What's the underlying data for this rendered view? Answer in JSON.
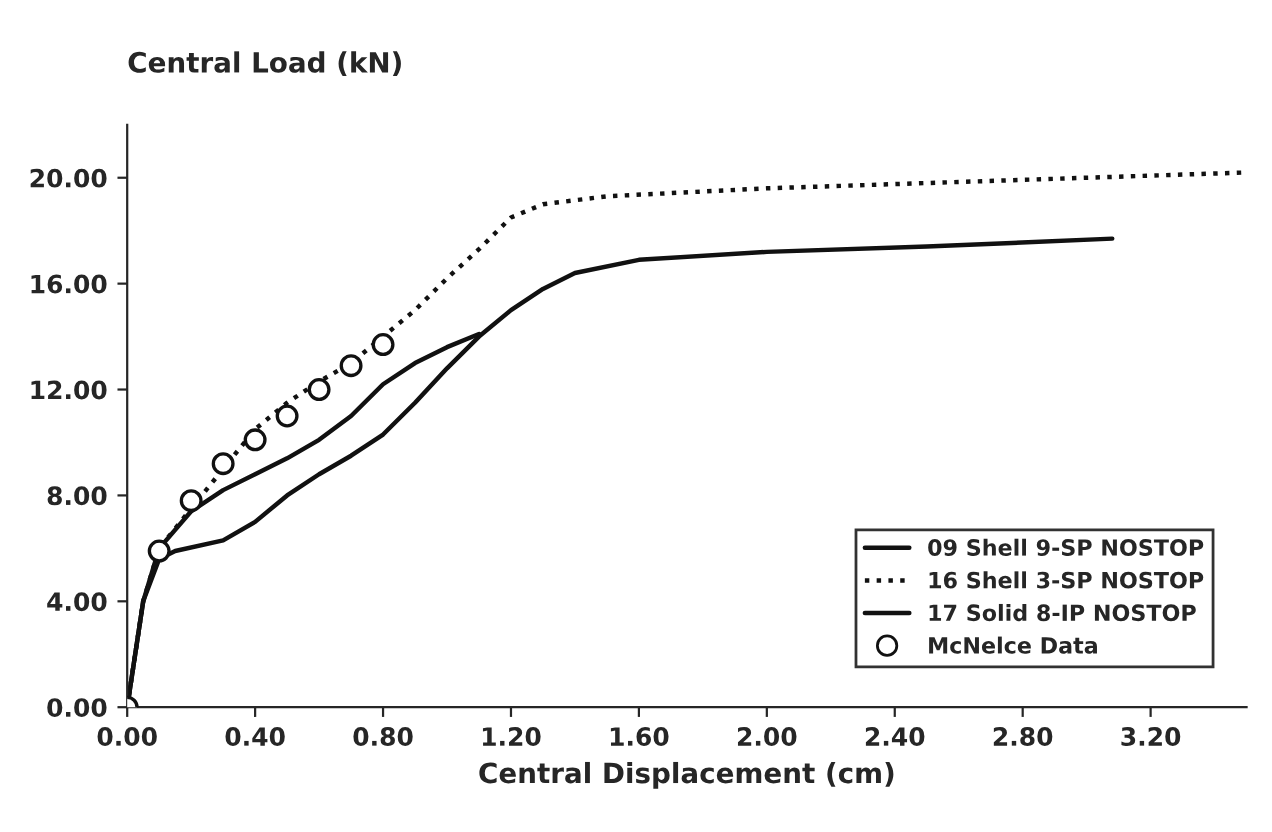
{
  "chart_data": {
    "type": "line",
    "xlabel": "Central Displacement (cm)",
    "ylabel": "Central Load (kN)",
    "xlim": [
      0,
      3.5
    ],
    "ylim": [
      0,
      22
    ],
    "xticks": [
      {
        "value": 0,
        "label": "0.00"
      },
      {
        "value": 0.4,
        "label": "0.40"
      },
      {
        "value": 0.8,
        "label": "0.80"
      },
      {
        "value": 1.2,
        "label": "1.20"
      },
      {
        "value": 1.6,
        "label": "1.60"
      },
      {
        "value": 2.0,
        "label": "2.00"
      },
      {
        "value": 2.4,
        "label": "2.40"
      },
      {
        "value": 2.8,
        "label": "2.80"
      },
      {
        "value": 3.2,
        "label": "3.20"
      }
    ],
    "yticks": [
      {
        "value": 0,
        "label": "0.00"
      },
      {
        "value": 4,
        "label": "4.00"
      },
      {
        "value": 8,
        "label": "8.00"
      },
      {
        "value": 12,
        "label": "12.00"
      },
      {
        "value": 16,
        "label": "16.00"
      },
      {
        "value": 20,
        "label": "20.00"
      }
    ],
    "grid": false,
    "legend": "bottom right",
    "series": [
      {
        "name": "09 Shell 9-SP NOSTOP",
        "color": "#111111",
        "line_style": "solid",
        "x": [
          0,
          0.05,
          0.1,
          0.15,
          0.3,
          0.4,
          0.5,
          0.6,
          0.7,
          0.8,
          0.9,
          1.0,
          1.1,
          1.2,
          1.3,
          1.4,
          1.6,
          2.0,
          2.5,
          3.08
        ],
        "values": [
          0,
          4,
          5.6,
          5.9,
          6.3,
          7,
          8,
          8.8,
          9.5,
          10.3,
          11.5,
          12.8,
          14,
          15,
          15.8,
          16.4,
          16.9,
          17.2,
          17.4,
          17.7
        ]
      },
      {
        "name": "16 Shell 3-SP NOSTOP",
        "color": "#111111",
        "line_style": "dotted",
        "x": [
          0,
          0.05,
          0.1,
          0.2,
          0.3,
          0.4,
          0.5,
          0.6,
          0.7,
          0.8,
          0.9,
          1.0,
          1.1,
          1.2,
          1.3,
          1.5,
          2.0,
          2.5,
          3.0,
          3.5
        ],
        "values": [
          0,
          4,
          6,
          7.5,
          9,
          10.5,
          11.5,
          12.3,
          13,
          14,
          15,
          16.2,
          17.3,
          18.5,
          19,
          19.3,
          19.6,
          19.8,
          20,
          20.2
        ]
      },
      {
        "name": "17 Solid 8-IP NOSTOP",
        "color": "#111111",
        "line_style": "solid",
        "x": [
          0,
          0.05,
          0.1,
          0.2,
          0.3,
          0.4,
          0.5,
          0.6,
          0.7,
          0.8,
          0.9,
          1.0,
          1.1
        ],
        "values": [
          0,
          4,
          6,
          7.4,
          8.2,
          8.8,
          9.4,
          10.1,
          11,
          12.2,
          13,
          13.6,
          14.1
        ]
      },
      {
        "name": "McNelce Data",
        "type": "scatter",
        "marker": "circle",
        "color": "#111111",
        "x": [
          0,
          0.1,
          0.2,
          0.3,
          0.4,
          0.5,
          0.6,
          0.7,
          0.8
        ],
        "values": [
          0,
          5.9,
          7.8,
          9.2,
          10.1,
          11,
          12,
          12.9,
          13.7
        ]
      }
    ]
  }
}
